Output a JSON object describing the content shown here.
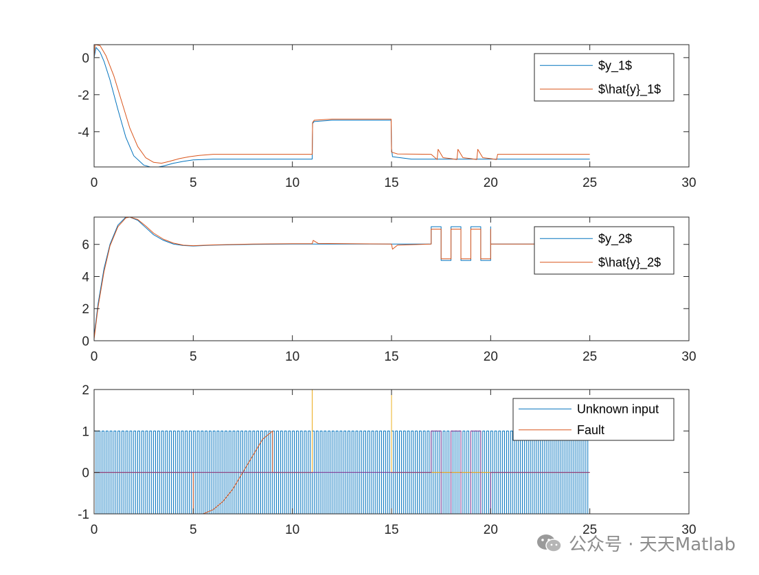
{
  "chart_data": [
    {
      "type": "line",
      "title": "",
      "xlabel": "",
      "ylabel": "",
      "xlim": [
        0,
        30
      ],
      "ylim": [
        -5.9,
        0.7
      ],
      "xticks": [
        0,
        5,
        10,
        15,
        20,
        25,
        30
      ],
      "yticks": [
        0,
        -2,
        -4
      ],
      "grid": false,
      "legend_position": "top-right",
      "series": [
        {
          "name": "$y_1$",
          "color": "#0072BD",
          "x": [
            0,
            0.1,
            0.3,
            0.5,
            0.8,
            1.2,
            1.6,
            2.0,
            2.5,
            3.0,
            3.5,
            4.0,
            4.5,
            5.0,
            5.5,
            6.0,
            7.0,
            8.0,
            11.0,
            11.02,
            11.1,
            12.0,
            14.98,
            15.0,
            15.05,
            16.0,
            25.0
          ],
          "y": [
            0,
            0.55,
            0.3,
            -0.2,
            -1.2,
            -2.8,
            -4.3,
            -5.3,
            -5.8,
            -5.95,
            -5.85,
            -5.7,
            -5.6,
            -5.52,
            -5.5,
            -5.48,
            -5.48,
            -5.48,
            -5.48,
            -3.55,
            -3.45,
            -3.38,
            -3.38,
            -4.9,
            -5.35,
            -5.48,
            -5.48
          ]
        },
        {
          "name": "$\\hat{y}_1$",
          "color": "#D95319",
          "x": [
            0,
            0.05,
            0.3,
            0.6,
            1.0,
            1.4,
            1.8,
            2.2,
            2.6,
            3.0,
            3.4,
            3.8,
            4.3,
            4.8,
            5.3,
            6.0,
            7.0,
            8.0,
            11.0,
            11.02,
            11.1,
            12.0,
            14.98,
            15.0,
            15.3,
            17.0,
            17.3,
            17.35,
            17.6,
            18.0,
            18.3,
            18.35,
            18.6,
            19.0,
            19.3,
            19.35,
            19.6,
            20.0,
            20.3,
            20.35,
            25.0
          ],
          "y": [
            0,
            0.7,
            0.65,
            0.1,
            -1.0,
            -2.4,
            -3.8,
            -4.8,
            -5.4,
            -5.65,
            -5.7,
            -5.6,
            -5.45,
            -5.35,
            -5.28,
            -5.22,
            -5.22,
            -5.22,
            -5.22,
            -3.5,
            -3.38,
            -3.32,
            -3.32,
            -5.1,
            -5.2,
            -5.22,
            -5.5,
            -4.95,
            -5.4,
            -5.45,
            -5.5,
            -4.95,
            -5.4,
            -5.45,
            -5.5,
            -4.95,
            -5.4,
            -5.45,
            -5.5,
            -5.22,
            -5.22
          ]
        }
      ]
    },
    {
      "type": "line",
      "title": "",
      "xlabel": "",
      "ylabel": "",
      "xlim": [
        0,
        30
      ],
      "ylim": [
        0,
        7.7
      ],
      "xticks": [
        0,
        5,
        10,
        15,
        20,
        25,
        30
      ],
      "yticks": [
        0,
        2,
        4,
        6
      ],
      "grid": false,
      "legend_position": "top-right",
      "series": [
        {
          "name": "$y_2$",
          "color": "#0072BD",
          "x": [
            0,
            0.2,
            0.5,
            0.8,
            1.2,
            1.6,
            1.8,
            2.2,
            2.6,
            3.0,
            3.5,
            4.0,
            4.5,
            5.0,
            6.0,
            8.0,
            10.0,
            11.0,
            15.0,
            17.0,
            17.0,
            17.5,
            17.5,
            17.5,
            18.0,
            18.0,
            18.5,
            18.5,
            19.0,
            19.0,
            19.5,
            19.5,
            20.0,
            20.0,
            20.0,
            25.0
          ],
          "y": [
            0.3,
            2.3,
            4.5,
            6.0,
            7.2,
            7.7,
            7.7,
            7.5,
            7.05,
            6.6,
            6.25,
            6.02,
            5.93,
            5.9,
            5.95,
            6.0,
            6.02,
            6.02,
            6.02,
            6.02,
            7.1,
            7.1,
            5.0,
            5.0,
            5.0,
            7.1,
            7.1,
            5.0,
            5.0,
            7.1,
            7.1,
            5.0,
            5.0,
            7.1,
            6.02,
            6.02
          ]
        },
        {
          "name": "$\\hat{y}_2$",
          "color": "#D95319",
          "x": [
            0,
            0.2,
            0.5,
            0.8,
            1.2,
            1.6,
            1.8,
            2.2,
            2.6,
            3.0,
            3.5,
            4.0,
            4.5,
            5.0,
            6.0,
            8.0,
            10.0,
            11.0,
            11.05,
            11.3,
            15.0,
            15.05,
            15.3,
            17.0,
            17.0,
            17.5,
            17.5,
            17.5,
            18.0,
            18.0,
            18.5,
            18.5,
            19.0,
            19.0,
            19.5,
            19.5,
            20.0,
            20.0,
            20.0,
            25.0
          ],
          "y": [
            0.1,
            2.1,
            4.3,
            5.9,
            7.1,
            7.65,
            7.7,
            7.55,
            7.15,
            6.7,
            6.32,
            6.08,
            5.95,
            5.92,
            5.97,
            6.02,
            6.04,
            6.04,
            6.25,
            6.06,
            6.02,
            5.7,
            5.95,
            6.02,
            6.95,
            6.95,
            5.1,
            5.1,
            5.1,
            6.95,
            6.95,
            5.1,
            5.1,
            6.95,
            6.95,
            5.1,
            5.1,
            6.95,
            6.02,
            6.02
          ]
        }
      ]
    },
    {
      "type": "line",
      "title": "",
      "xlabel": "",
      "ylabel": "",
      "xlim": [
        0,
        30
      ],
      "ylim": [
        -1,
        2
      ],
      "xticks": [
        0,
        5,
        10,
        15,
        20,
        25,
        30
      ],
      "yticks": [
        -1,
        0,
        1,
        2
      ],
      "grid": false,
      "legend_position": "top-right",
      "series": [
        {
          "name": "Unknown input",
          "color": "#0072BD",
          "kind": "square_wave",
          "x_range": [
            0,
            25
          ],
          "period": 0.2,
          "amplitude": 1
        },
        {
          "name": "Fault",
          "color": "#D95319",
          "x": [
            0,
            5,
            5,
            5.5,
            6,
            6.5,
            7,
            7.5,
            8,
            8.5,
            9,
            9,
            11,
            11,
            15,
            15,
            17,
            17,
            25
          ],
          "y": [
            0,
            0,
            -1,
            -1,
            -0.9,
            -0.7,
            -0.4,
            0.0,
            0.4,
            0.8,
            1.0,
            0,
            0,
            2,
            2,
            0,
            0,
            0,
            0
          ]
        },
        {
          "name": "",
          "color": "#EDB120",
          "x": [
            0,
            11,
            11,
            15,
            15,
            25
          ],
          "y": [
            0,
            0,
            2,
            2,
            0,
            0
          ]
        },
        {
          "name": "",
          "color": "#7E2F8E",
          "x": [
            0,
            17,
            17,
            17.5,
            17.5,
            18,
            18,
            18.5,
            18.5,
            19,
            19,
            19.5,
            19.5,
            20,
            20,
            25
          ],
          "y": [
            0,
            0,
            1,
            1,
            -1,
            -1,
            1,
            1,
            -1,
            -1,
            1,
            1,
            -1,
            -1,
            0,
            0
          ]
        }
      ]
    }
  ],
  "legends": [
    {
      "entries": [
        {
          "label": "$y_1$",
          "color": "#0072BD"
        },
        {
          "label": "$\\hat{y}_1$",
          "color": "#D95319"
        }
      ]
    },
    {
      "entries": [
        {
          "label": "$y_2$",
          "color": "#0072BD"
        },
        {
          "label": "$\\hat{y}_2$",
          "color": "#D95319"
        }
      ]
    },
    {
      "entries": [
        {
          "label": "Unknown input",
          "color": "#0072BD"
        },
        {
          "label": "Fault",
          "color": "#D95319"
        }
      ]
    }
  ],
  "watermark": {
    "text": "公众号 · 天天Matlab",
    "icon": "wechat-logo-icon"
  }
}
